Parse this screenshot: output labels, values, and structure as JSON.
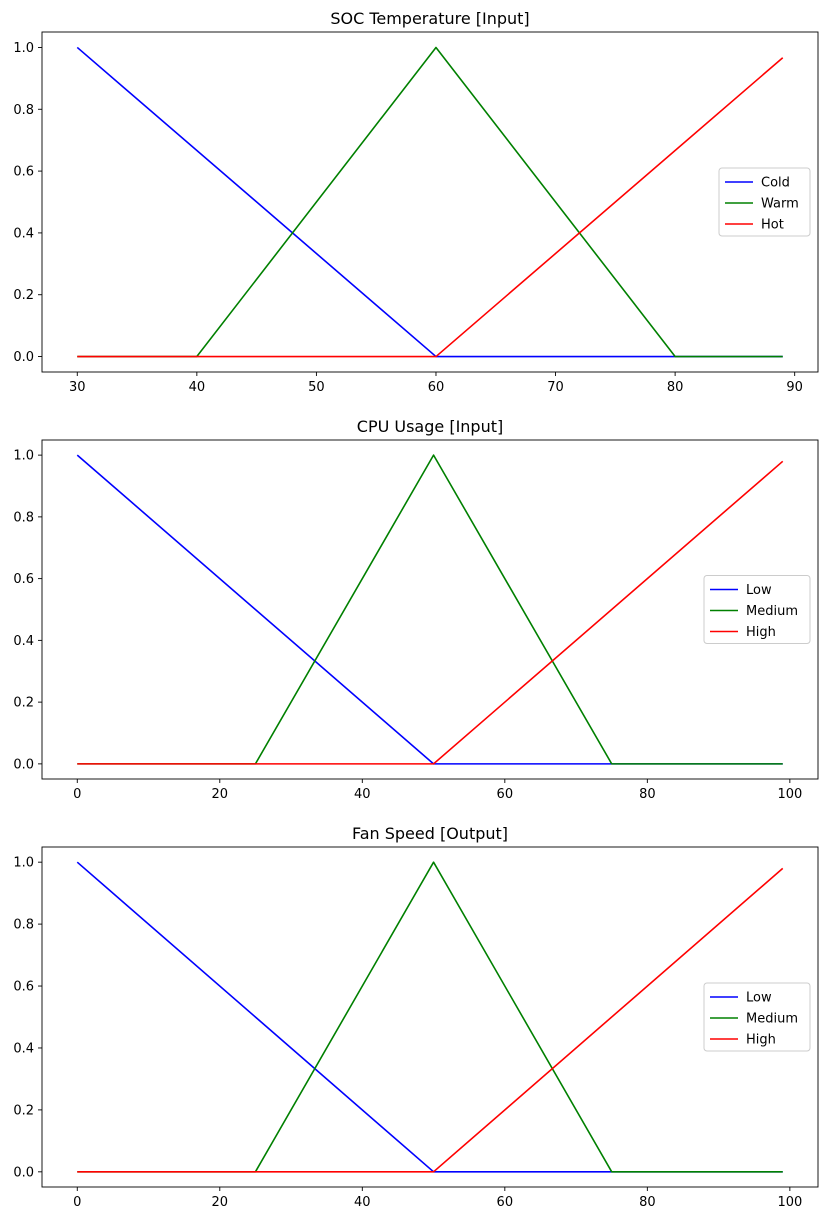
{
  "chart_data": [
    {
      "type": "line",
      "title": "SOC Temperature [Input]",
      "xlabel": "",
      "ylabel": "",
      "xlim": [
        27.05,
        91.95
      ],
      "ylim": [
        -0.05,
        1.05
      ],
      "xticks": [
        30,
        40,
        50,
        60,
        70,
        80,
        90
      ],
      "xtick_labels": [
        "30",
        "40",
        "50",
        "60",
        "70",
        "80",
        "90"
      ],
      "yticks": [
        0,
        0.2,
        0.4,
        0.6,
        0.8,
        1.0
      ],
      "ytick_labels": [
        "0.0",
        "0.2",
        "0.4",
        "0.6",
        "0.8",
        "1.0"
      ],
      "grid": false,
      "legend_position": "center-right",
      "series": [
        {
          "name": "Cold",
          "color": "#0000ff",
          "x": [
            30,
            60,
            89
          ],
          "y": [
            1.0,
            0.0,
            0.0
          ]
        },
        {
          "name": "Warm",
          "color": "#008000",
          "x": [
            30,
            40,
            60,
            80,
            89
          ],
          "y": [
            0.0,
            0.0,
            1.0,
            0.0,
            0.0
          ]
        },
        {
          "name": "Hot",
          "color": "#ff0000",
          "x": [
            30,
            60,
            89
          ],
          "y": [
            0.0,
            0.0,
            0.9667
          ]
        }
      ]
    },
    {
      "type": "line",
      "title": "CPU Usage [Input]",
      "xlabel": "",
      "ylabel": "",
      "xlim": [
        -4.95,
        103.95
      ],
      "ylim": [
        -0.049,
        1.049
      ],
      "xticks": [
        0,
        20,
        40,
        60,
        80,
        100
      ],
      "xtick_labels": [
        "0",
        "20",
        "40",
        "60",
        "80",
        "100"
      ],
      "yticks": [
        0,
        0.2,
        0.4,
        0.6,
        0.8,
        1.0
      ],
      "ytick_labels": [
        "0.0",
        "0.2",
        "0.4",
        "0.6",
        "0.8",
        "1.0"
      ],
      "grid": false,
      "legend_position": "center-right",
      "series": [
        {
          "name": "Low",
          "color": "#0000ff",
          "x": [
            0,
            50,
            99
          ],
          "y": [
            1.0,
            0.0,
            0.0
          ]
        },
        {
          "name": "Medium",
          "color": "#008000",
          "x": [
            0,
            25,
            50,
            75,
            99
          ],
          "y": [
            0.0,
            0.0,
            1.0,
            0.0,
            0.0
          ]
        },
        {
          "name": "High",
          "color": "#ff0000",
          "x": [
            0,
            50,
            99
          ],
          "y": [
            0.0,
            0.0,
            0.98
          ]
        }
      ]
    },
    {
      "type": "line",
      "title": "Fan Speed [Output]",
      "xlabel": "",
      "ylabel": "",
      "xlim": [
        -4.95,
        103.95
      ],
      "ylim": [
        -0.049,
        1.049
      ],
      "xticks": [
        0,
        20,
        40,
        60,
        80,
        100
      ],
      "xtick_labels": [
        "0",
        "20",
        "40",
        "60",
        "80",
        "100"
      ],
      "yticks": [
        0,
        0.2,
        0.4,
        0.6,
        0.8,
        1.0
      ],
      "ytick_labels": [
        "0.0",
        "0.2",
        "0.4",
        "0.6",
        "0.8",
        "1.0"
      ],
      "grid": false,
      "legend_position": "center-right",
      "series": [
        {
          "name": "Low",
          "color": "#0000ff",
          "x": [
            0,
            50,
            99
          ],
          "y": [
            1.0,
            0.0,
            0.0
          ]
        },
        {
          "name": "Medium",
          "color": "#008000",
          "x": [
            0,
            25,
            50,
            75,
            99
          ],
          "y": [
            0.0,
            0.0,
            1.0,
            0.0,
            0.0
          ]
        },
        {
          "name": "High",
          "color": "#ff0000",
          "x": [
            0,
            50,
            99
          ],
          "y": [
            0.0,
            0.0,
            0.98
          ]
        }
      ]
    }
  ]
}
